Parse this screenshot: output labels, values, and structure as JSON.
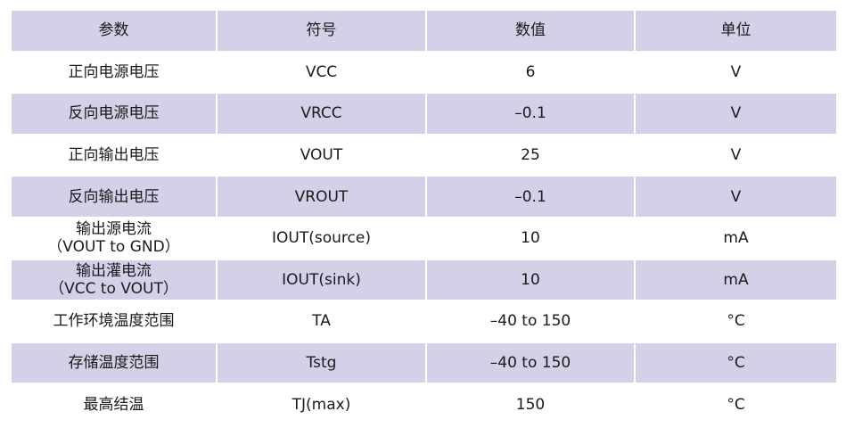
{
  "colors": {
    "row_shade": "#d3d1e7",
    "background": "#ffffff"
  },
  "table": {
    "headers": [
      "参数",
      "符号",
      "数值",
      "单位"
    ],
    "rows": [
      {
        "param": [
          "正向电源电压"
        ],
        "symbol": "VCC",
        "value": "6",
        "unit": "V"
      },
      {
        "param": [
          "反向电源电压"
        ],
        "symbol": "VRCC",
        "value": "–0.1",
        "unit": "V"
      },
      {
        "param": [
          "正向输出电压"
        ],
        "symbol": "VOUT",
        "value": "25",
        "unit": "V"
      },
      {
        "param": [
          "反向输出电压"
        ],
        "symbol": "VROUT",
        "value": "–0.1",
        "unit": "V"
      },
      {
        "param": [
          "输出源电流",
          "（VOUT to GND）"
        ],
        "symbol": "IOUT(source)",
        "value": "10",
        "unit": "mA"
      },
      {
        "param": [
          "输出灌电流",
          "（VCC to VOUT）"
        ],
        "symbol": "IOUT(sink)",
        "value": "10",
        "unit": "mA"
      },
      {
        "param": [
          "工作环境温度范围"
        ],
        "symbol": "TA",
        "value": "–40 to 150",
        "unit": "°C"
      },
      {
        "param": [
          "存储温度范围"
        ],
        "symbol": "Tstg",
        "value": "–40 to 150",
        "unit": "°C"
      },
      {
        "param": [
          "最高结温"
        ],
        "symbol": "TJ(max)",
        "value": "150",
        "unit": "°C"
      }
    ]
  }
}
